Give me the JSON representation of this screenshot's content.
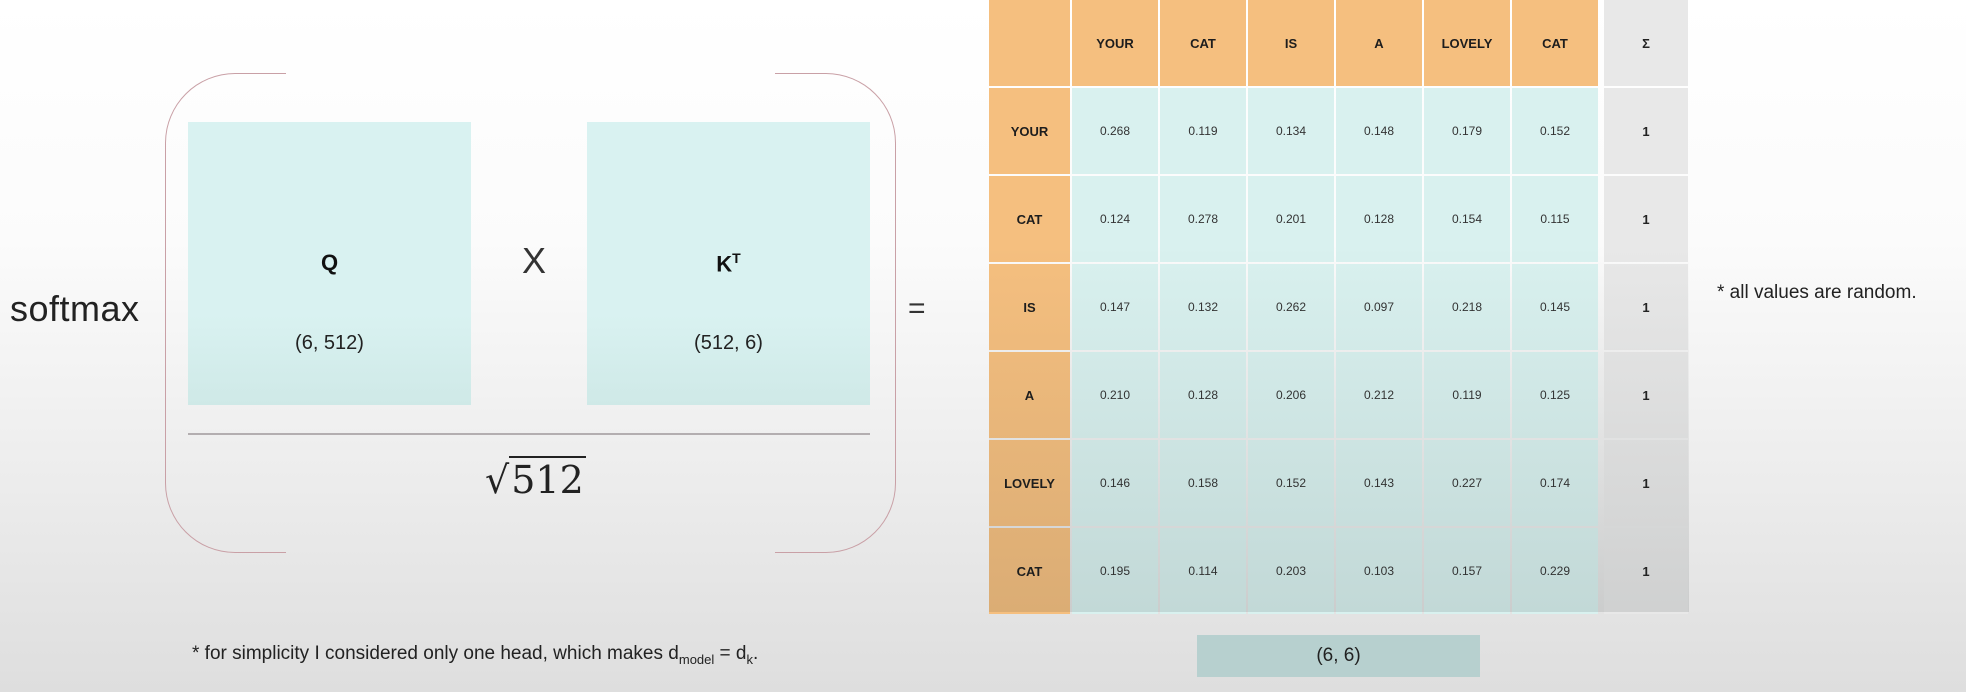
{
  "formula": {
    "function_label": "softmax",
    "numerator_left": {
      "symbol": "Q",
      "dims": "(6, 512)"
    },
    "operator": "X",
    "numerator_right": {
      "symbol": "K",
      "superscript": "T",
      "dims": "(512, 6)"
    },
    "denominator_radicand": "512",
    "equals": "="
  },
  "table": {
    "sum_symbol": "Σ",
    "columns": [
      "YOUR",
      "CAT",
      "IS",
      "A",
      "LOVELY",
      "CAT"
    ],
    "rows": [
      {
        "label": "YOUR",
        "values": [
          "0.268",
          "0.119",
          "0.134",
          "0.148",
          "0.179",
          "0.152"
        ],
        "sum": "1"
      },
      {
        "label": "CAT",
        "values": [
          "0.124",
          "0.278",
          "0.201",
          "0.128",
          "0.154",
          "0.115"
        ],
        "sum": "1"
      },
      {
        "label": "IS",
        "values": [
          "0.147",
          "0.132",
          "0.262",
          "0.097",
          "0.218",
          "0.145"
        ],
        "sum": "1"
      },
      {
        "label": "A",
        "values": [
          "0.210",
          "0.128",
          "0.206",
          "0.212",
          "0.119",
          "0.125"
        ],
        "sum": "1"
      },
      {
        "label": "LOVELY",
        "values": [
          "0.146",
          "0.158",
          "0.152",
          "0.143",
          "0.227",
          "0.174"
        ],
        "sum": "1"
      },
      {
        "label": "CAT",
        "values": [
          "0.195",
          "0.114",
          "0.203",
          "0.103",
          "0.157",
          "0.229"
        ],
        "sum": "1"
      }
    ],
    "result_dims": "(6, 6)"
  },
  "notes": {
    "random": "* all values are random.",
    "simplicity_prefix": "* for simplicity I considered only one head, which makes d",
    "sub_model": "model",
    "equals_d": " = d",
    "sub_k": "k",
    "end": "."
  },
  "colors": {
    "header": "#f5bf7f",
    "value_cell": "#d9f1ef",
    "sum_cell": "#e8e8e8",
    "matrix": "#d9f2f1"
  }
}
